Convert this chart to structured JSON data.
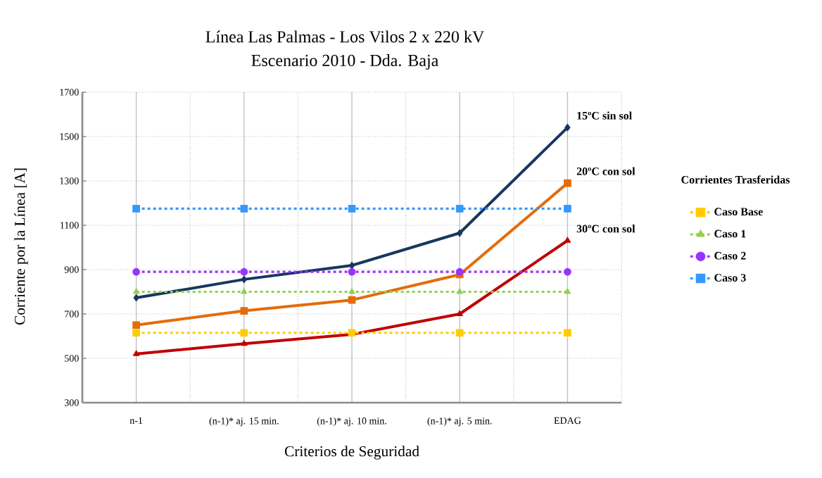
{
  "chart_data": {
    "type": "line",
    "title": "Línea Las Palmas - Los Vilos 2 x 220 kV",
    "subtitle": "Escenario 2010 - Dda. Baja",
    "xlabel": "Criterios de Seguridad",
    "ylabel": "Corriente por la Línea [A]",
    "legend_title": "Corrientes Trasferidas",
    "categories": [
      "n-1",
      "(n-1)* aj. 15 min.",
      "(n-1)* aj. 10 min.",
      "(n-1)* aj. 5 min.",
      "EDAG"
    ],
    "ylim": [
      300,
      1700
    ],
    "yticks": [
      300,
      500,
      700,
      900,
      1100,
      1300,
      1500,
      1700
    ],
    "grid": true,
    "legend": "right",
    "series": [
      {
        "name": "15ºC sin sol",
        "color": "#17375e",
        "marker": "diamond",
        "line_style": "solid",
        "values": [
          773,
          856,
          919,
          1065,
          1541
        ]
      },
      {
        "name": "20ºC con sol",
        "color": "#e46c0a",
        "marker": "square",
        "line_style": "solid",
        "values": [
          650,
          714,
          763,
          878,
          1290
        ]
      },
      {
        "name": "30ºC con sol",
        "color": "#c00000",
        "marker": "triangle",
        "line_style": "solid",
        "values": [
          520,
          566,
          608,
          700,
          1031
        ]
      },
      {
        "name": "Caso Base",
        "color": "#ffcc00",
        "marker": "square",
        "line_style": "dashed",
        "values": [
          615,
          615,
          615,
          615,
          615
        ]
      },
      {
        "name": "Caso 1",
        "color": "#92d050",
        "marker": "triangle",
        "line_style": "dashed",
        "values": [
          800,
          800,
          800,
          800,
          800
        ]
      },
      {
        "name": "Caso 2",
        "color": "#9933ff",
        "marker": "circle",
        "line_style": "dashed",
        "values": [
          890,
          890,
          890,
          890,
          890
        ]
      },
      {
        "name": "Caso 3",
        "color": "#3399ff",
        "marker": "square",
        "line_style": "dashed",
        "values": [
          1175,
          1175,
          1175,
          1175,
          1175
        ]
      }
    ]
  }
}
